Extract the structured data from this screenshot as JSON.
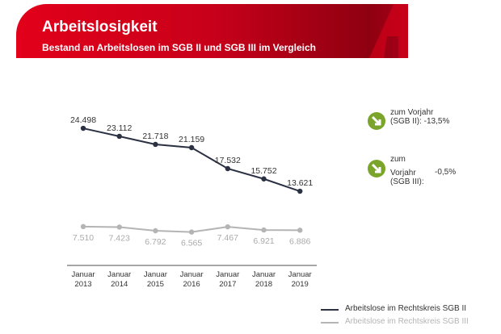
{
  "header": {
    "title": "Arbeitslosigkeit",
    "subtitle": "Bestand an Arbeitslosen im SGB II und SGB III im Vergleich"
  },
  "colors": {
    "banner": "#e2001a",
    "sgb2": "#2b3143",
    "sgb3": "#b4b4b4",
    "arrow": "#7aa52a"
  },
  "notes": [
    {
      "icon": "arrow-down-right-icon",
      "lines": [
        "zum Vorjahr",
        "(SGB II): -13,5%"
      ]
    },
    {
      "icon": "arrow-down-right-icon",
      "lines": [
        "zum",
        "Vorjahr",
        "(SGB III):"
      ],
      "value": "-0,5%"
    }
  ],
  "chart_data": {
    "type": "line",
    "categories": [
      "Januar 2013",
      "Januar 2014",
      "Januar 2015",
      "Januar 2016",
      "Januar 2017",
      "Januar 2018",
      "Januar 2019"
    ],
    "category_lines": [
      [
        "Januar",
        "2013"
      ],
      [
        "Januar",
        "2014"
      ],
      [
        "Januar",
        "2015"
      ],
      [
        "Januar",
        "2016"
      ],
      [
        "Januar",
        "2017"
      ],
      [
        "Januar",
        "2018"
      ],
      [
        "Januar",
        "2019"
      ]
    ],
    "series": [
      {
        "name": "Arbeitslose im Rechtskreis SGB II",
        "values": [
          24498,
          23112,
          21718,
          21159,
          17532,
          15752,
          13621
        ],
        "labels": [
          "24.498",
          "23.112",
          "21.718",
          "21.159",
          "17.532",
          "15.752",
          "13.621"
        ]
      },
      {
        "name": "Arbeitslose im Rechtskreis SGB III",
        "values": [
          7510,
          7423,
          6792,
          6565,
          7467,
          6921,
          6886
        ],
        "labels": [
          "7.510",
          "7.423",
          "6.792",
          "6.565",
          "7.467",
          "6.921",
          "6.886"
        ]
      }
    ],
    "legend": "bottom-right",
    "grid": false
  }
}
